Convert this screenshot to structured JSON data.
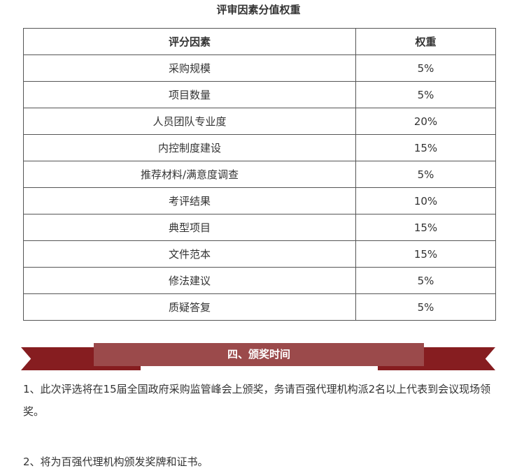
{
  "title": "评审因素分值权重",
  "table": {
    "headers": [
      "评分因素",
      "权重"
    ],
    "rows": [
      [
        "采购规模",
        "5%"
      ],
      [
        "项目数量",
        "5%"
      ],
      [
        "人员团队专业度",
        "20%"
      ],
      [
        "内控制度建设",
        "15%"
      ],
      [
        "推荐材料/满意度调查",
        "5%"
      ],
      [
        "考评结果",
        "10%"
      ],
      [
        "典型项目",
        "15%"
      ],
      [
        "文件范本",
        "15%"
      ],
      [
        "修法建议",
        "5%"
      ],
      [
        "质疑答复",
        "5%"
      ]
    ]
  },
  "section": {
    "heading": "四、颁奖时间",
    "colors": {
      "band": "#861d20",
      "overlay": "#9b4a4b"
    }
  },
  "paragraphs": [
    "1、此次评选将在15届全国政府采购监管峰会上颁奖，务请百强代理机构派2名以上代表到会议现场领奖。",
    "2、将为百强代理机构颁发奖牌和证书。"
  ]
}
